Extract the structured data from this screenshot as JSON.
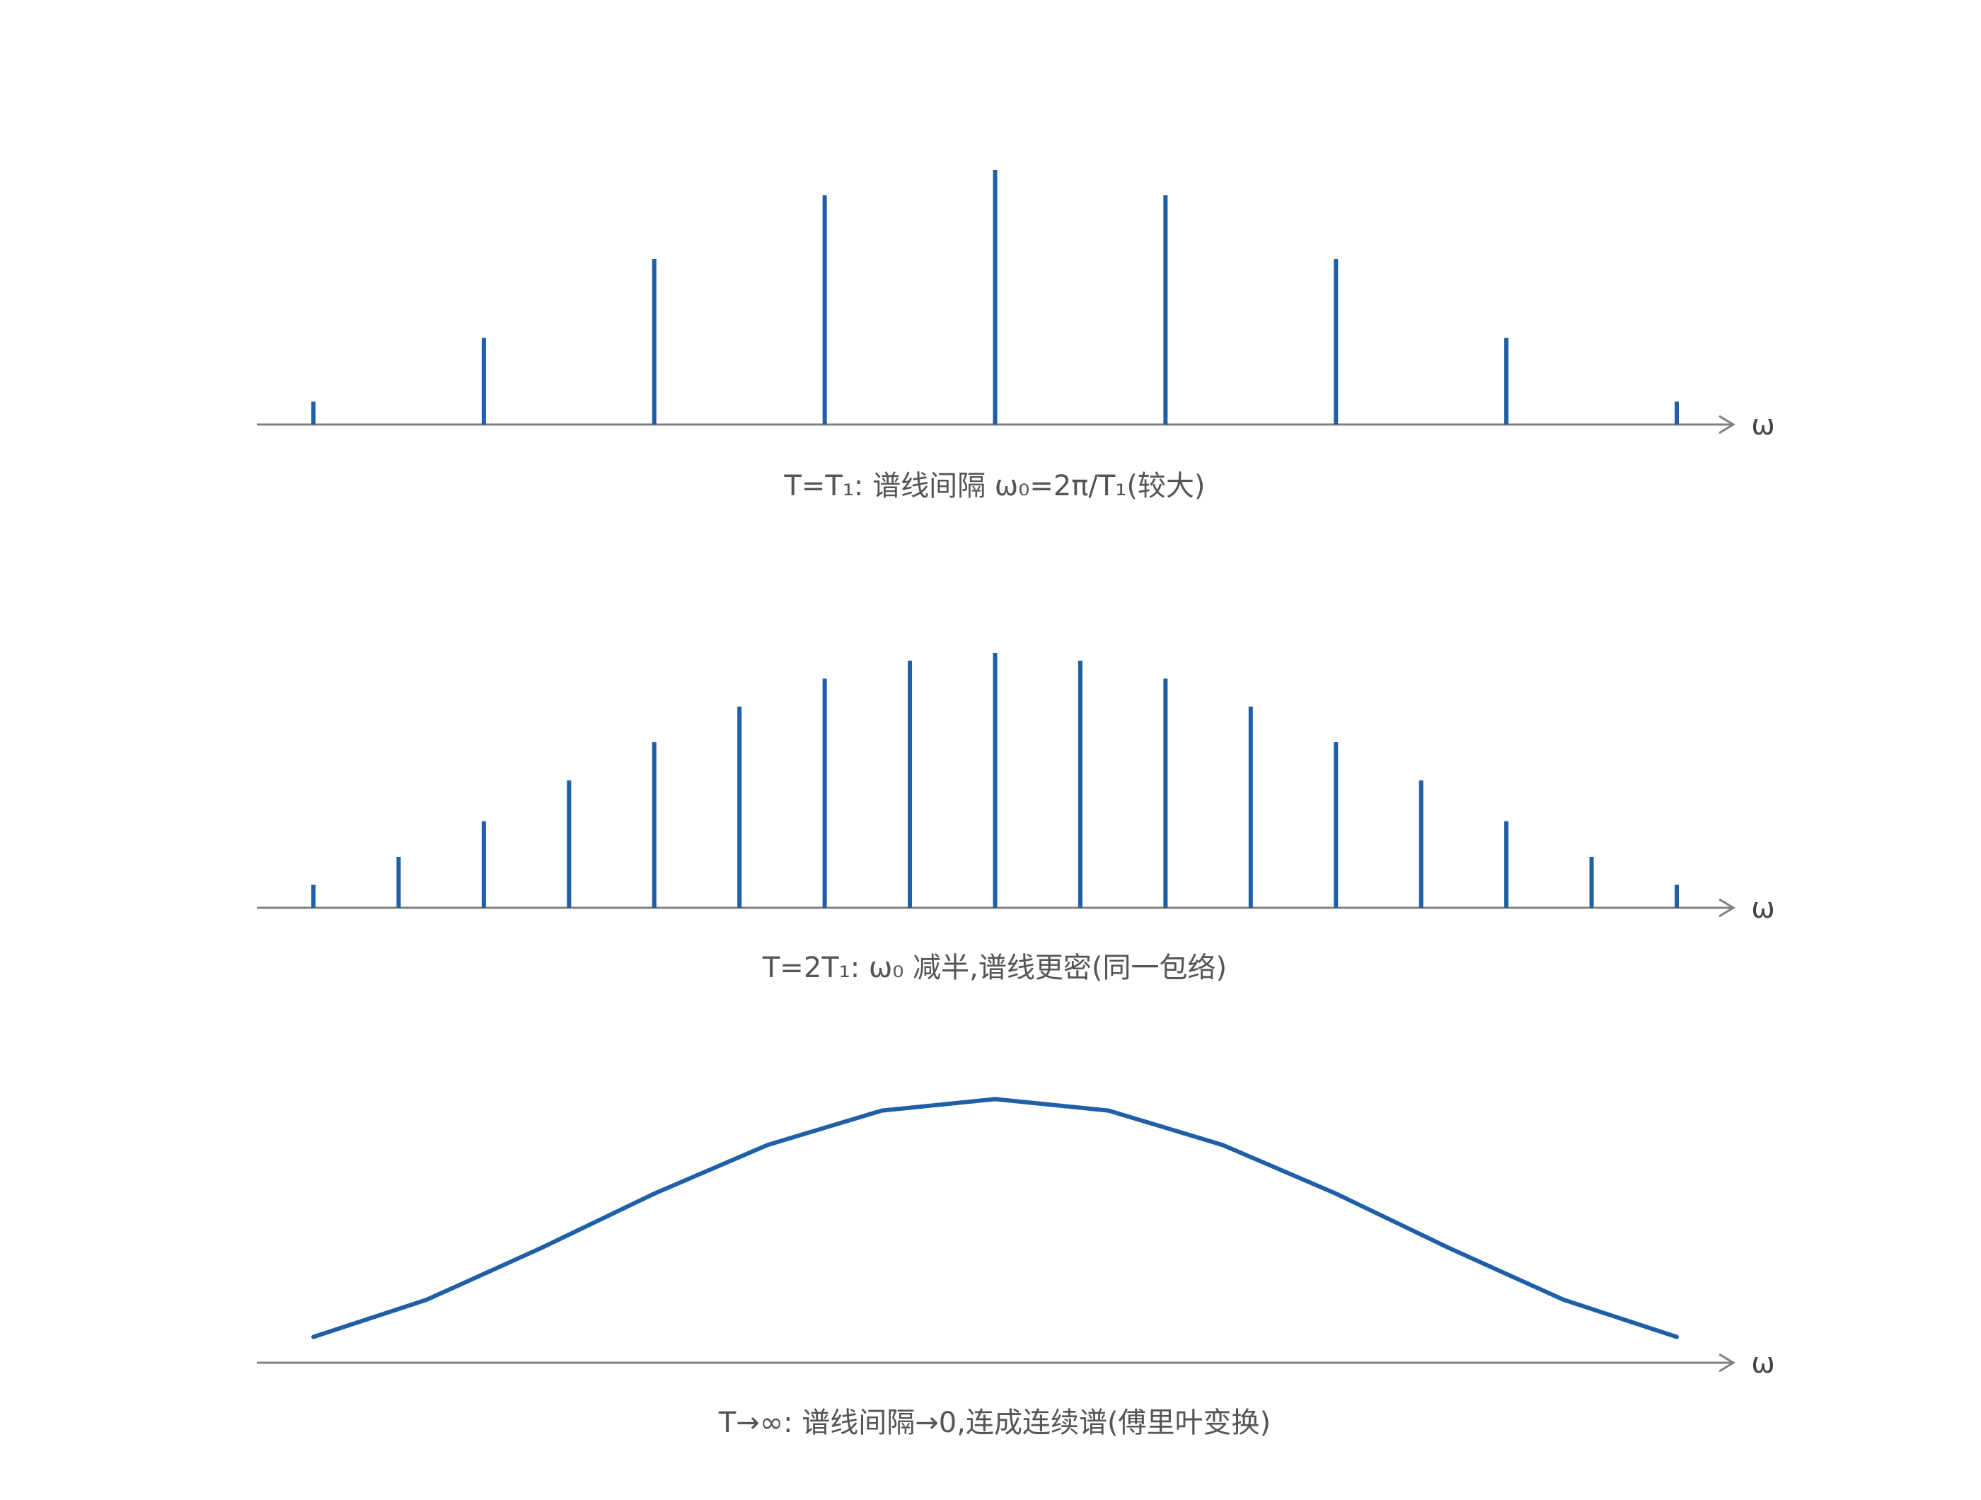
{
  "colors": {
    "stem": "#1f5fa6",
    "axis": "#808080",
    "text": "#555555"
  },
  "chart_data": [
    {
      "type": "bar",
      "subtype": "stem",
      "caption": "T=T₁: 谱线间隔 ω₀=2π/T₁(较大)",
      "xlabel": "ω",
      "ylabel": "",
      "x": [
        -8,
        -6,
        -4,
        -2,
        0,
        2,
        4,
        6,
        8
      ],
      "values": [
        0.09,
        0.34,
        0.65,
        0.9,
        1.0,
        0.9,
        0.65,
        0.34,
        0.09
      ],
      "xlim": [
        -9,
        10
      ],
      "ylim": [
        0,
        1
      ],
      "grid": false
    },
    {
      "type": "bar",
      "subtype": "stem",
      "caption": "T=2T₁: ω₀ 减半,谱线更密(同一包络)",
      "xlabel": "ω",
      "ylabel": "",
      "x": [
        -8,
        -7,
        -6,
        -5,
        -4,
        -3,
        -2,
        -1,
        0,
        1,
        2,
        3,
        4,
        5,
        6,
        7,
        8
      ],
      "values": [
        0.09,
        0.2,
        0.34,
        0.5,
        0.65,
        0.79,
        0.9,
        0.97,
        1.0,
        0.97,
        0.9,
        0.79,
        0.65,
        0.5,
        0.34,
        0.2,
        0.09
      ],
      "xlim": [
        -9,
        10
      ],
      "ylim": [
        0,
        1
      ],
      "grid": false
    },
    {
      "type": "line",
      "caption": "T→∞: 谱线间隔→0,连成连续谱(傅里叶变换)",
      "xlabel": "ω",
      "ylabel": "",
      "x": [
        -8,
        -6.67,
        -5.33,
        -4,
        -2.67,
        -1.33,
        0,
        1.33,
        2.67,
        4,
        5.33,
        6.67,
        8
      ],
      "values": [
        0.09,
        0.22,
        0.4,
        0.59,
        0.76,
        0.88,
        0.92,
        0.88,
        0.76,
        0.59,
        0.4,
        0.22,
        0.09
      ],
      "xlim": [
        -9,
        10
      ],
      "ylim": [
        0,
        1
      ],
      "grid": false
    }
  ]
}
